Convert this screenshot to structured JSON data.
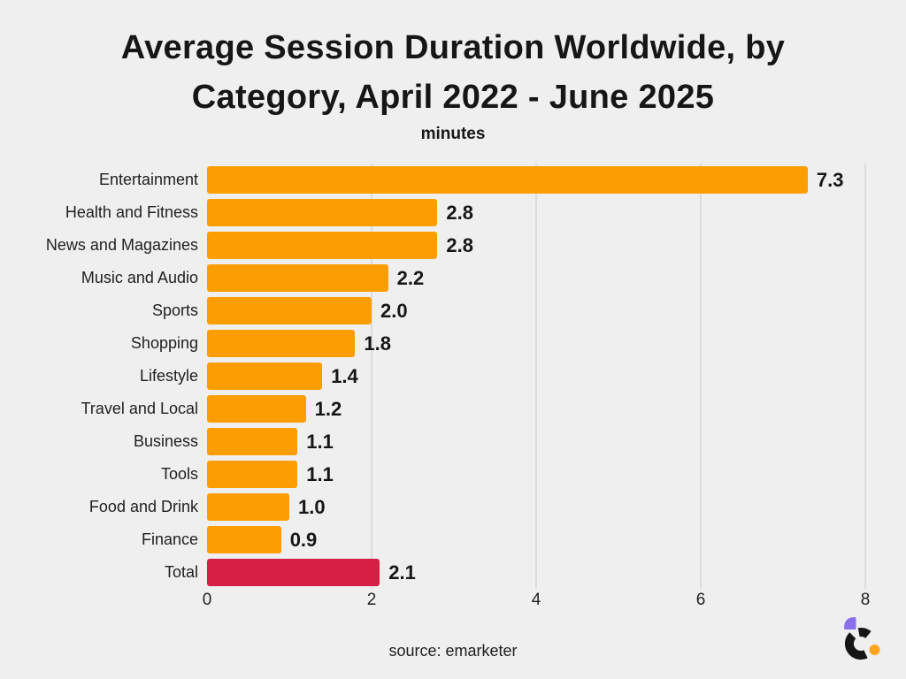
{
  "title": {
    "line1": "Average Session Duration Worldwide, by",
    "line2": "Category, April 2022 - June 2025"
  },
  "subtitle": "minutes",
  "source": "source: emarketer",
  "logo": {
    "name": "chartr logo mark",
    "black": "#161616",
    "purple": "#8B70EE",
    "orange": "#FFA41C"
  },
  "colors": {
    "background": "#F0EFEF",
    "text": "#161616",
    "gridline": "#DCDCDC",
    "bar_default": "#FC9E03",
    "bar_total": "#D51F44"
  },
  "chart_data": {
    "type": "bar",
    "orientation": "horizontal",
    "title": "Average Session Duration Worldwide, by Category, April 2022 - June 2025",
    "xlabel": "minutes",
    "ylabel": "",
    "categories": [
      "Entertainment",
      "Health and Fitness",
      "News and Magazines",
      "Music and Audio",
      "Sports",
      "Shopping",
      "Lifestyle",
      "Travel and Local",
      "Business",
      "Tools",
      "Food and Drink",
      "Finance",
      "Total"
    ],
    "values": [
      7.3,
      2.8,
      2.8,
      2.2,
      2.0,
      1.8,
      1.4,
      1.2,
      1.1,
      1.1,
      1.0,
      0.9,
      2.1
    ],
    "value_labels": [
      "7.3",
      "2.8",
      "2.8",
      "2.2",
      "2.0",
      "1.8",
      "1.4",
      "1.2",
      "1.1",
      "1.1",
      "1.0",
      "0.9",
      "2.1"
    ],
    "bar_colors": [
      "#FC9E03",
      "#FC9E03",
      "#FC9E03",
      "#FC9E03",
      "#FC9E03",
      "#FC9E03",
      "#FC9E03",
      "#FC9E03",
      "#FC9E03",
      "#FC9E03",
      "#FC9E03",
      "#FC9E03",
      "#D51F44"
    ],
    "highlighted_category": "Total",
    "xlim": [
      0,
      8
    ],
    "xticks": [
      0,
      2,
      4,
      6,
      8
    ],
    "xtick_labels": [
      "0",
      "2",
      "4",
      "6",
      "8"
    ],
    "grid": "vertical",
    "legend": "none"
  }
}
